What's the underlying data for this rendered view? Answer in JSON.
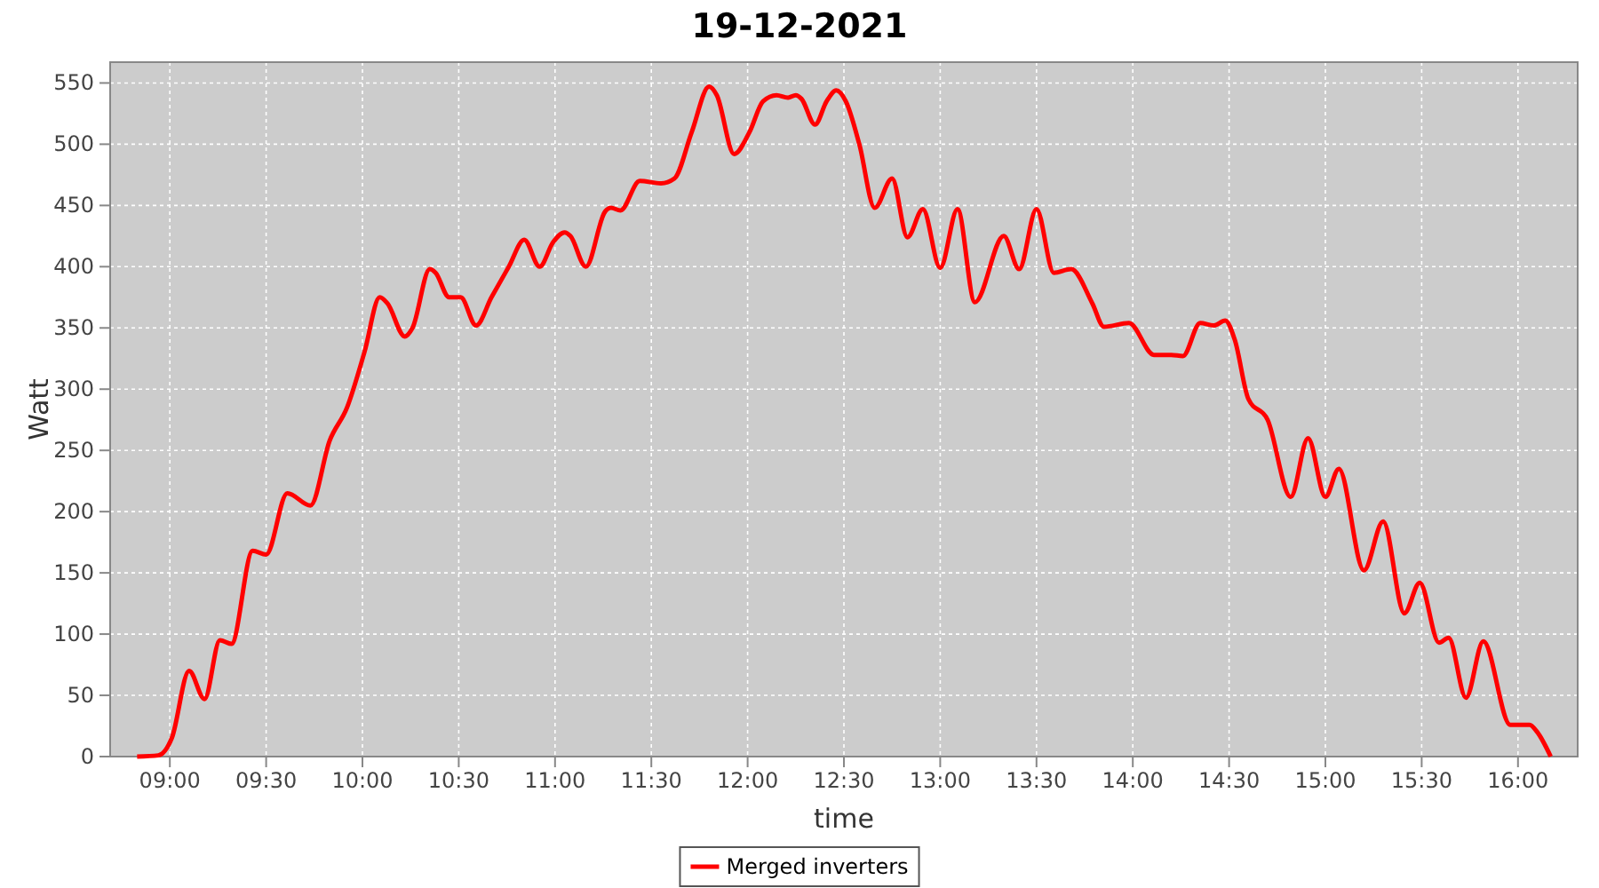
{
  "chart_data": {
    "type": "line",
    "title": "19-12-2021",
    "xlabel": "time",
    "ylabel": "Watt",
    "x": [
      8.83,
      8.94,
      9.01,
      9.1,
      9.18,
      9.26,
      9.32,
      9.43,
      9.5,
      9.61,
      9.73,
      9.83,
      9.92,
      10.01,
      10.09,
      10.13,
      10.22,
      10.26,
      10.35,
      10.38,
      10.45,
      10.51,
      10.59,
      10.67,
      10.76,
      10.84,
      10.92,
      10.99,
      11.05,
      11.08,
      11.16,
      11.26,
      11.29,
      11.34,
      11.44,
      11.55,
      11.62,
      11.71,
      11.8,
      11.84,
      11.93,
      12.01,
      12.08,
      12.15,
      12.21,
      12.25,
      12.28,
      12.35,
      12.41,
      12.46,
      12.51,
      12.58,
      12.66,
      12.75,
      12.83,
      12.91,
      13.0,
      13.09,
      13.18,
      13.33,
      13.41,
      13.5,
      13.59,
      13.68,
      13.79,
      13.85,
      13.98,
      14.11,
      14.2,
      14.26,
      14.35,
      14.42,
      14.48,
      14.53,
      14.6,
      14.7,
      14.82,
      14.91,
      15.0,
      15.07,
      15.2,
      15.3,
      15.41,
      15.49,
      15.59,
      15.64,
      15.73,
      15.82,
      15.96,
      16.06,
      16.1,
      16.17
    ],
    "series": [
      {
        "name": "Merged inverters",
        "color": "#ff0000",
        "values": [
          0,
          1,
          15,
          70,
          47,
          95,
          92,
          168,
          165,
          215,
          205,
          258,
          285,
          330,
          375,
          370,
          343,
          350,
          398,
          395,
          375,
          375,
          352,
          375,
          400,
          422,
          400,
          420,
          428,
          425,
          400,
          445,
          448,
          446,
          470,
          468,
          472,
          510,
          547,
          540,
          492,
          510,
          535,
          540,
          538,
          540,
          537,
          516,
          535,
          544,
          535,
          500,
          448,
          472,
          424,
          447,
          399,
          447,
          371,
          425,
          398,
          447,
          395,
          398,
          370,
          351,
          354,
          328,
          328,
          327,
          354,
          352,
          356,
          340,
          292,
          275,
          212,
          260,
          212,
          235,
          152,
          192,
          117,
          142,
          93,
          97,
          48,
          94,
          26,
          26,
          20,
          0
        ]
      }
    ],
    "xlim": [
      8.69,
      16.31
    ],
    "ylim": [
      0,
      567
    ],
    "xticks": [
      {
        "value": 9,
        "label": "09:00"
      },
      {
        "value": 9.5,
        "label": "09:30"
      },
      {
        "value": 10,
        "label": "10:00"
      },
      {
        "value": 10.5,
        "label": "10:30"
      },
      {
        "value": 11,
        "label": "11:00"
      },
      {
        "value": 11.5,
        "label": "11:30"
      },
      {
        "value": 12,
        "label": "12:00"
      },
      {
        "value": 12.5,
        "label": "12:30"
      },
      {
        "value": 13,
        "label": "13:00"
      },
      {
        "value": 13.5,
        "label": "13:30"
      },
      {
        "value": 14,
        "label": "14:00"
      },
      {
        "value": 14.5,
        "label": "14:30"
      },
      {
        "value": 15,
        "label": "15:00"
      },
      {
        "value": 15.5,
        "label": "15:30"
      },
      {
        "value": 16,
        "label": "16:00"
      }
    ],
    "yticks": [
      0,
      50,
      100,
      150,
      200,
      250,
      300,
      350,
      400,
      450,
      500,
      550
    ],
    "grid": true,
    "legend": "bottom",
    "line_style": "solid"
  }
}
